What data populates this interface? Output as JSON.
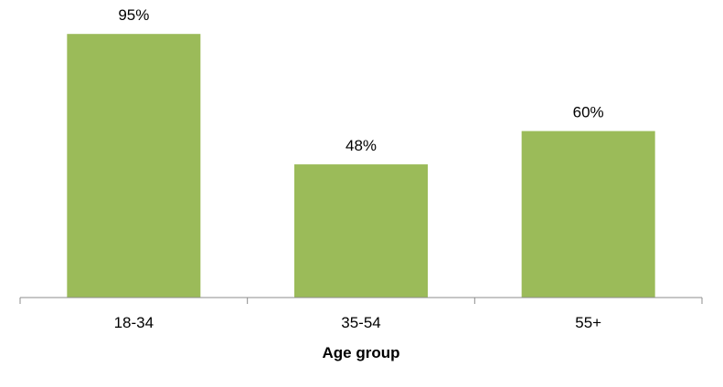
{
  "chart_data": {
    "type": "bar",
    "categories": [
      "18-34",
      "35-54",
      "55+"
    ],
    "values": [
      95,
      48,
      60
    ],
    "value_labels": [
      "95%",
      "48%",
      "60%"
    ],
    "unit": "%",
    "title": "",
    "xlabel": "Age group",
    "ylabel": "",
    "ylim": [
      0,
      100
    ],
    "grid": false,
    "legend": "none",
    "bar_color": "#9bbb59",
    "axis_color": "#8c8c8c"
  }
}
